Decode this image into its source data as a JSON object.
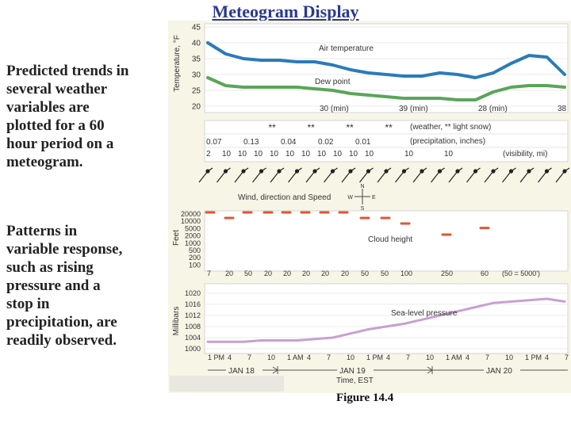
{
  "title": "Meteogram Display",
  "left_text": {
    "para1": [
      "Predicted trends in",
      "several weather",
      "variables are",
      "plotted for a 60",
      "hour period on a",
      "meteogram."
    ],
    "para2": [
      "Patterns in",
      "variable response,",
      "such as rising",
      "pressure and a",
      "stop in",
      "precipitation, are",
      "readily observed."
    ]
  },
  "caption": "Figure 14.4",
  "chart_data": [
    {
      "type": "line",
      "ylabel": "Temperature, °F",
      "ylim": [
        20,
        45
      ],
      "y_ticks": [
        "45",
        "40",
        "35",
        "30",
        "25",
        "20"
      ],
      "grid": true,
      "x": [
        0,
        3,
        6,
        9,
        12,
        15,
        18,
        21,
        24,
        27,
        30,
        33,
        36,
        39,
        42,
        45,
        48,
        51,
        54,
        57,
        60
      ],
      "series": [
        {
          "name": "Air temperature",
          "color": "#2b7bb9",
          "values": [
            40,
            36.5,
            35,
            34.5,
            34.5,
            34,
            34,
            33,
            31.5,
            30.5,
            30,
            29.5,
            29.5,
            30.5,
            30,
            29,
            30.5,
            33.5,
            36,
            35.5,
            30
          ]
        },
        {
          "name": "Dew point",
          "color": "#5aa55a",
          "values": [
            29,
            26.5,
            26,
            26,
            26,
            26,
            25.5,
            25,
            24,
            23.5,
            23,
            22.5,
            22.5,
            22.5,
            22,
            22,
            24.5,
            26,
            26.5,
            26.5,
            26
          ]
        }
      ],
      "annotations": [
        "30 (min)",
        "39 (min)",
        "28 (min)",
        "38"
      ]
    },
    {
      "type": "table",
      "weather_symbol": "**",
      "weather_label": "(weather, ** light snow)",
      "precipitation_label": "(precipitation, inches)",
      "visibility_label": "(visibility, mi)",
      "snow_columns": [
        3,
        5,
        7,
        9
      ],
      "precipitation": [
        "0.07",
        "0.13",
        "0.04",
        "0.02",
        "0.01"
      ],
      "visibility": [
        "2",
        "10",
        "10",
        "10",
        "10",
        "10",
        "10",
        "10",
        "10",
        "10",
        "10",
        "10",
        "10"
      ]
    },
    {
      "type": "scatter",
      "title": "Wind, direction and Speed",
      "compass": {
        "n": "N",
        "s": "S",
        "w": "W",
        "e": "E"
      },
      "count": 21
    },
    {
      "type": "scatter",
      "ylabel": "Feet",
      "y_ticks": [
        "20000",
        "10000",
        "5000",
        "2000",
        "1000",
        "500",
        "200",
        "100"
      ],
      "series_name": "Cloud height",
      "x_labels": [
        "7",
        "20",
        "50",
        "20",
        "20",
        "20",
        "20",
        "20",
        "50",
        "50",
        "100",
        "250",
        "60",
        "(50 = 5000')"
      ],
      "dash_color": "#e05535",
      "dash_levels": [
        2,
        1.5,
        2,
        2,
        2,
        2,
        2,
        2,
        1.5,
        1.5,
        0,
        1,
        0.6
      ]
    },
    {
      "type": "line",
      "ylabel": "Millibars",
      "y_ticks": [
        "1020",
        "1016",
        "1012",
        "1008",
        "1004",
        "1000"
      ],
      "ylim": [
        1000,
        1020
      ],
      "series_name": "Sea-level pressure",
      "color": "#c8a0d2",
      "x": [
        0,
        3,
        6,
        9,
        12,
        15,
        18,
        21,
        24,
        27,
        30,
        33,
        36,
        39,
        42,
        45,
        48,
        51,
        54,
        57,
        60
      ],
      "values": [
        1002.5,
        1002.5,
        1002.5,
        1003,
        1003,
        1003,
        1003.5,
        1004,
        1005.5,
        1007,
        1008,
        1009,
        1010.5,
        1012,
        1013.5,
        1015,
        1016.5,
        1017,
        1017.5,
        1018,
        1017
      ]
    },
    {
      "type": "table",
      "xlabel": "Time, EST",
      "time_ticks": [
        "1 PM",
        "4",
        "7",
        "10",
        "1 AM",
        "4",
        "7",
        "10",
        "1 PM",
        "4",
        "7",
        "10",
        "1 AM",
        "4",
        "7",
        "10",
        "1 PM",
        "4",
        "7"
      ],
      "dates": [
        "JAN 18",
        "JAN 19",
        "JAN 20"
      ]
    }
  ]
}
